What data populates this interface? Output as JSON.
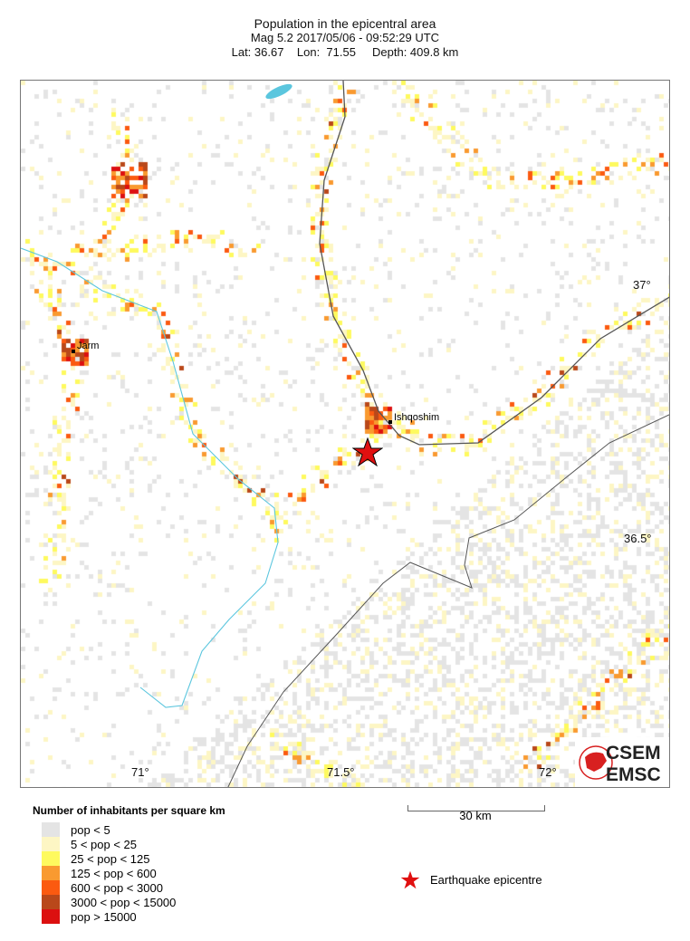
{
  "title": {
    "line1": "Population in the epicentral area",
    "line2": "Mag 5.2  2017/05/06 - 09:52:29 UTC",
    "line3": "Lat: 36.67    Lon:  71.55     Depth: 409.8 km"
  },
  "map": {
    "lon_ticks": [
      "71°",
      "71.5°",
      "72°"
    ],
    "lat_ticks": [
      "37°",
      "36.5°"
    ],
    "places": [
      {
        "name": "Jarm"
      },
      {
        "name": "Ishqoshim"
      }
    ],
    "epicentre": {
      "lat": 36.67,
      "lon": 71.55,
      "color": "#e01010"
    },
    "river_color": "#5bc6de",
    "border_color": "#555555"
  },
  "legend": {
    "title": "Number of inhabitants per square km",
    "items": [
      {
        "label": "pop < 5",
        "color": "#e4e4e4"
      },
      {
        "label": "5 < pop < 25",
        "color": "#fdf6c4"
      },
      {
        "label": "25 < pop < 125",
        "color": "#fefa5e"
      },
      {
        "label": "125 < pop < 600",
        "color": "#f99a30"
      },
      {
        "label": "600 < pop < 3000",
        "color": "#fb5a10"
      },
      {
        "label": "3000 < pop < 15000",
        "color": "#b9481a"
      },
      {
        "label": "pop > 15000",
        "color": "#dc1010"
      }
    ]
  },
  "scale": {
    "label": "30 km"
  },
  "epicentre_legend": {
    "label": "Earthquake epicentre"
  },
  "logo": {
    "top": "CSEM",
    "bottom": "EMSC"
  }
}
